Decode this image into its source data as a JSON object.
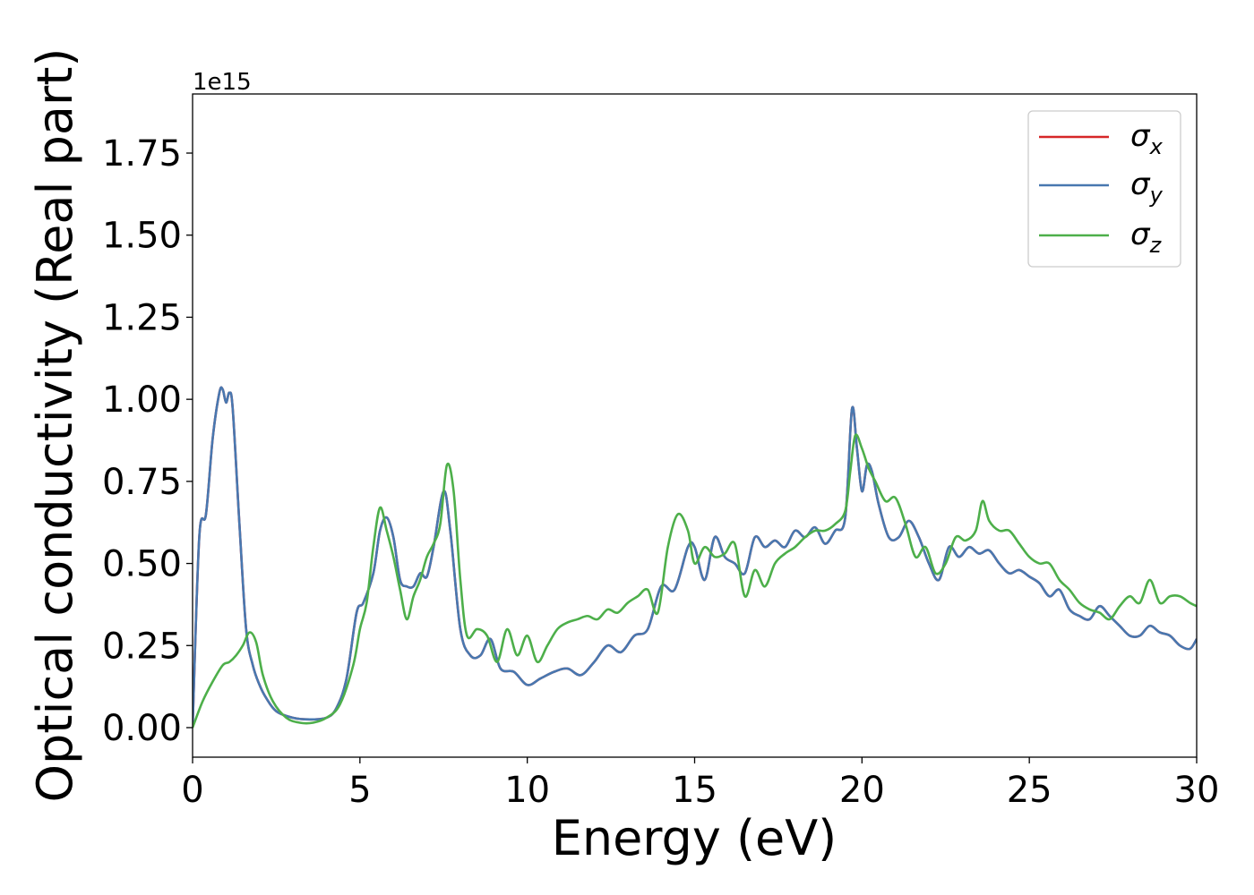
{
  "chart_data": {
    "type": "line",
    "title": "",
    "xlabel": "Energy (eV)",
    "ylabel": "Optical conductivity (Real part)",
    "y_offset_label": "1e15",
    "xlim": [
      0,
      30
    ],
    "ylim": [
      -0.09,
      1.93
    ],
    "x_ticks": [
      0,
      5,
      10,
      15,
      20,
      25,
      30
    ],
    "x_tick_labels": [
      "0",
      "5",
      "10",
      "15",
      "20",
      "25",
      "30"
    ],
    "y_ticks": [
      0.0,
      0.25,
      0.5,
      0.75,
      1.0,
      1.25,
      1.5,
      1.75
    ],
    "y_tick_labels": [
      "0.00",
      "0.25",
      "0.50",
      "0.75",
      "1.00",
      "1.25",
      "1.50",
      "1.75"
    ],
    "grid": false,
    "legend_position": "top-right",
    "series": [
      {
        "name": "σx",
        "base": "σ",
        "sub": "x",
        "color": "#d62728",
        "x": [
          0,
          0.2,
          0.4,
          0.6,
          0.8,
          0.9,
          1.0,
          1.1,
          1.2,
          1.4,
          1.6,
          1.8,
          2.0,
          2.2,
          2.5,
          3.0,
          3.5,
          4.0,
          4.3,
          4.6,
          4.9,
          5.1,
          5.4,
          5.6,
          5.8,
          6.0,
          6.2,
          6.4,
          6.6,
          6.8,
          7.0,
          7.2,
          7.5,
          7.7,
          8.0,
          8.3,
          8.6,
          8.9,
          9.2,
          9.6,
          10.0,
          10.4,
          10.8,
          11.2,
          11.6,
          12.0,
          12.4,
          12.8,
          13.2,
          13.6,
          14.0,
          14.4,
          14.8,
          15.0,
          15.3,
          15.6,
          15.9,
          16.2,
          16.5,
          16.8,
          17.1,
          17.4,
          17.7,
          18.0,
          18.3,
          18.6,
          18.9,
          19.2,
          19.5,
          19.7,
          19.85,
          20.0,
          20.15,
          20.3,
          20.5,
          20.8,
          21.1,
          21.4,
          21.7,
          22.0,
          22.3,
          22.6,
          22.9,
          23.2,
          23.5,
          23.8,
          24.1,
          24.4,
          24.7,
          25.0,
          25.3,
          25.6,
          25.9,
          26.2,
          26.5,
          26.8,
          27.1,
          27.4,
          27.7,
          28.0,
          28.3,
          28.6,
          28.9,
          29.2,
          29.5,
          29.8,
          30.0
        ],
        "values": [
          0.0,
          0.58,
          0.65,
          0.88,
          1.02,
          1.03,
          0.99,
          1.02,
          0.97,
          0.62,
          0.3,
          0.19,
          0.13,
          0.09,
          0.05,
          0.03,
          0.025,
          0.03,
          0.06,
          0.15,
          0.35,
          0.38,
          0.47,
          0.6,
          0.64,
          0.58,
          0.45,
          0.43,
          0.43,
          0.47,
          0.46,
          0.55,
          0.72,
          0.6,
          0.3,
          0.22,
          0.22,
          0.27,
          0.18,
          0.17,
          0.13,
          0.15,
          0.17,
          0.18,
          0.16,
          0.2,
          0.25,
          0.23,
          0.28,
          0.3,
          0.43,
          0.42,
          0.55,
          0.55,
          0.45,
          0.58,
          0.52,
          0.5,
          0.47,
          0.58,
          0.55,
          0.57,
          0.55,
          0.6,
          0.58,
          0.61,
          0.56,
          0.6,
          0.64,
          0.97,
          0.85,
          0.72,
          0.8,
          0.78,
          0.68,
          0.58,
          0.58,
          0.63,
          0.58,
          0.5,
          0.45,
          0.55,
          0.52,
          0.55,
          0.53,
          0.54,
          0.5,
          0.47,
          0.48,
          0.46,
          0.44,
          0.4,
          0.42,
          0.36,
          0.34,
          0.33,
          0.37,
          0.34,
          0.31,
          0.28,
          0.28,
          0.31,
          0.29,
          0.28,
          0.25,
          0.24,
          0.27
        ]
      },
      {
        "name": "σy",
        "base": "σ",
        "sub": "y",
        "color": "#4878b0",
        "x": [
          0,
          0.2,
          0.4,
          0.6,
          0.8,
          0.9,
          1.0,
          1.1,
          1.2,
          1.4,
          1.6,
          1.8,
          2.0,
          2.2,
          2.5,
          3.0,
          3.5,
          4.0,
          4.3,
          4.6,
          4.9,
          5.1,
          5.4,
          5.6,
          5.8,
          6.0,
          6.2,
          6.4,
          6.6,
          6.8,
          7.0,
          7.2,
          7.5,
          7.7,
          8.0,
          8.3,
          8.6,
          8.9,
          9.2,
          9.6,
          10.0,
          10.4,
          10.8,
          11.2,
          11.6,
          12.0,
          12.4,
          12.8,
          13.2,
          13.6,
          14.0,
          14.4,
          14.8,
          15.0,
          15.3,
          15.6,
          15.9,
          16.2,
          16.5,
          16.8,
          17.1,
          17.4,
          17.7,
          18.0,
          18.3,
          18.6,
          18.9,
          19.2,
          19.5,
          19.7,
          19.85,
          20.0,
          20.15,
          20.3,
          20.5,
          20.8,
          21.1,
          21.4,
          21.7,
          22.0,
          22.3,
          22.6,
          22.9,
          23.2,
          23.5,
          23.8,
          24.1,
          24.4,
          24.7,
          25.0,
          25.3,
          25.6,
          25.9,
          26.2,
          26.5,
          26.8,
          27.1,
          27.4,
          27.7,
          28.0,
          28.3,
          28.6,
          28.9,
          29.2,
          29.5,
          29.8,
          30.0
        ],
        "values": [
          0.0,
          0.58,
          0.65,
          0.88,
          1.02,
          1.03,
          0.99,
          1.02,
          0.97,
          0.62,
          0.3,
          0.19,
          0.13,
          0.09,
          0.05,
          0.03,
          0.025,
          0.03,
          0.06,
          0.15,
          0.35,
          0.38,
          0.47,
          0.6,
          0.64,
          0.58,
          0.45,
          0.43,
          0.43,
          0.47,
          0.46,
          0.55,
          0.72,
          0.6,
          0.3,
          0.22,
          0.22,
          0.27,
          0.18,
          0.17,
          0.13,
          0.15,
          0.17,
          0.18,
          0.16,
          0.2,
          0.25,
          0.23,
          0.28,
          0.3,
          0.43,
          0.42,
          0.55,
          0.55,
          0.45,
          0.58,
          0.52,
          0.5,
          0.47,
          0.58,
          0.55,
          0.57,
          0.55,
          0.6,
          0.58,
          0.61,
          0.56,
          0.6,
          0.64,
          0.97,
          0.85,
          0.72,
          0.8,
          0.78,
          0.68,
          0.58,
          0.58,
          0.63,
          0.58,
          0.5,
          0.45,
          0.55,
          0.52,
          0.55,
          0.53,
          0.54,
          0.5,
          0.47,
          0.48,
          0.46,
          0.44,
          0.4,
          0.42,
          0.36,
          0.34,
          0.33,
          0.37,
          0.34,
          0.31,
          0.28,
          0.28,
          0.31,
          0.29,
          0.28,
          0.25,
          0.24,
          0.27
        ]
      },
      {
        "name": "σz",
        "base": "σ",
        "sub": "z",
        "color": "#4daf4a",
        "x": [
          0,
          0.3,
          0.6,
          0.9,
          1.1,
          1.3,
          1.5,
          1.7,
          1.9,
          2.1,
          2.4,
          2.8,
          3.2,
          3.6,
          4.0,
          4.4,
          4.8,
          5.0,
          5.2,
          5.4,
          5.6,
          5.8,
          6.0,
          6.2,
          6.4,
          6.6,
          6.8,
          7.0,
          7.2,
          7.4,
          7.6,
          7.8,
          8.0,
          8.2,
          8.5,
          8.8,
          9.1,
          9.4,
          9.7,
          10.0,
          10.3,
          10.6,
          10.9,
          11.2,
          11.5,
          11.8,
          12.1,
          12.4,
          12.7,
          13.0,
          13.3,
          13.6,
          13.9,
          14.2,
          14.5,
          14.8,
          15.0,
          15.3,
          15.6,
          15.9,
          16.2,
          16.5,
          16.8,
          17.1,
          17.4,
          17.7,
          18.0,
          18.3,
          18.6,
          18.9,
          19.2,
          19.5,
          19.65,
          19.8,
          20.0,
          20.2,
          20.4,
          20.7,
          21.0,
          21.3,
          21.6,
          21.9,
          22.2,
          22.5,
          22.8,
          23.1,
          23.4,
          23.6,
          23.8,
          24.1,
          24.4,
          24.7,
          25.0,
          25.3,
          25.6,
          25.9,
          26.2,
          26.5,
          26.8,
          27.1,
          27.4,
          27.7,
          28.0,
          28.3,
          28.6,
          28.9,
          29.2,
          29.5,
          29.8,
          30.0
        ],
        "values": [
          0.0,
          0.08,
          0.14,
          0.19,
          0.2,
          0.22,
          0.25,
          0.29,
          0.26,
          0.16,
          0.08,
          0.03,
          0.015,
          0.015,
          0.03,
          0.07,
          0.19,
          0.3,
          0.38,
          0.55,
          0.67,
          0.6,
          0.52,
          0.42,
          0.33,
          0.4,
          0.45,
          0.52,
          0.56,
          0.62,
          0.8,
          0.72,
          0.45,
          0.28,
          0.3,
          0.28,
          0.2,
          0.3,
          0.22,
          0.28,
          0.2,
          0.25,
          0.3,
          0.32,
          0.33,
          0.34,
          0.33,
          0.36,
          0.35,
          0.38,
          0.4,
          0.42,
          0.35,
          0.55,
          0.65,
          0.6,
          0.5,
          0.55,
          0.52,
          0.53,
          0.56,
          0.4,
          0.48,
          0.43,
          0.5,
          0.53,
          0.55,
          0.58,
          0.6,
          0.6,
          0.62,
          0.66,
          0.78,
          0.89,
          0.85,
          0.79,
          0.75,
          0.69,
          0.7,
          0.62,
          0.52,
          0.55,
          0.47,
          0.5,
          0.58,
          0.57,
          0.6,
          0.69,
          0.63,
          0.6,
          0.6,
          0.56,
          0.52,
          0.5,
          0.5,
          0.45,
          0.42,
          0.38,
          0.36,
          0.35,
          0.33,
          0.37,
          0.4,
          0.38,
          0.45,
          0.38,
          0.4,
          0.4,
          0.38,
          0.37
        ]
      }
    ]
  }
}
